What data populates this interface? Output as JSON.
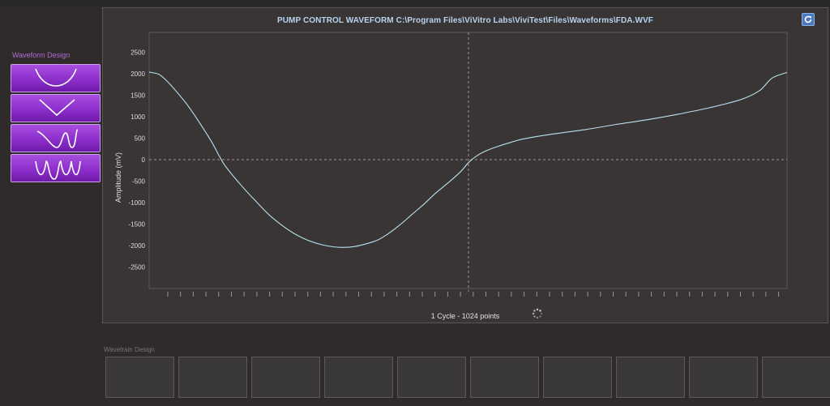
{
  "chart_panel": {
    "title": "PUMP CONTROL WAVEFORM C:\\Program Files\\ViVitro Labs\\ViviTest\\Files\\Waveforms\\FDA.WVF",
    "footer": "1 Cycle - 1024 points"
  },
  "waveform_design": {
    "label": "Waveform Design",
    "buttons": [
      {
        "name": "waveform-button-u-shape",
        "icon": "u-wave-icon"
      },
      {
        "name": "waveform-button-v-shape",
        "icon": "v-wave-icon"
      },
      {
        "name": "waveform-button-dip-bump",
        "icon": "dip-bump-wave-icon"
      },
      {
        "name": "waveform-button-multi",
        "icon": "multi-wave-icon"
      }
    ]
  },
  "wavetrain_design": {
    "label": "Wavetrain Design",
    "slot_count": 10
  },
  "chart_data": {
    "type": "line",
    "title": "PUMP CONTROL WAVEFORM C:\\Program Files\\ViVitro Labs\\ViviTest\\Files\\Waveforms\\FDA.WVF",
    "xlabel": "1 Cycle - 1024 points",
    "ylabel": "Amplitude (mV)",
    "xlim": [
      0,
      1024
    ],
    "ylim": [
      -3000,
      3000
    ],
    "y_ticks": [
      2500,
      2000,
      1500,
      1000,
      500,
      0,
      -500,
      -1000,
      -1500,
      -2000,
      -2500
    ],
    "grid": "dashed crosshair at x=512 and y=0",
    "colors": {
      "line": "#b9e0f0",
      "axis_text": "#dddddd",
      "plot_border": "#6a6262"
    },
    "series": [
      {
        "x": [
          0,
          15,
          25,
          40,
          60,
          80,
          100,
          120,
          145,
          170,
          200,
          240,
          280,
          320,
          360,
          380,
          400,
          420,
          440,
          460,
          480,
          500,
          512,
          525,
          540,
          560,
          580,
          600,
          640,
          700,
          750,
          800,
          850,
          900,
          950,
          980,
          1000,
          1024
        ],
        "y": [
          2040,
          1990,
          1880,
          1650,
          1300,
          880,
          420,
          -100,
          -550,
          -950,
          -1380,
          -1780,
          -1990,
          -2040,
          -1910,
          -1760,
          -1550,
          -1300,
          -1050,
          -780,
          -540,
          -280,
          -80,
          80,
          200,
          310,
          400,
          480,
          580,
          700,
          820,
          930,
          1060,
          1210,
          1400,
          1610,
          1900,
          2030
        ]
      }
    ]
  }
}
